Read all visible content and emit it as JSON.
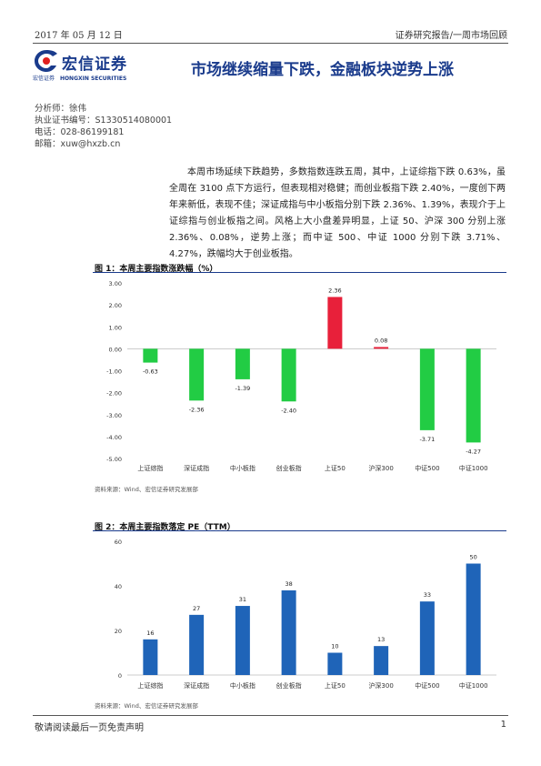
{
  "header": {
    "date": "2017 年 05 月 12 日",
    "report_type": "证券研究报告/一周市场回顾"
  },
  "logo": {
    "cn_name": "宏信证券",
    "sub_cn": "宏信证券",
    "en_name": "HONGXIN SECURITIES",
    "brand_color": "#1a3b8c",
    "accent_color": "#e02020"
  },
  "title": "市场继续缩量下跌，金融板块逆势上涨",
  "meta": {
    "analyst": "分析师：徐伟",
    "license": "执业证书编号：S1330514080001",
    "phone": "电话：028-86199181",
    "email": "邮箱：xuw@hxzb.cn"
  },
  "paragraph": "本周市场延续下跌趋势，多数指数连跌五周，其中，上证综指下跌 0.63%，虽全周在 3100 点下方运行，但表现相对稳健；而创业板指下跌 2.40%，一度创下两年来新低，表现不佳；深证成指与中小板指分别下跌 2.36%、1.39%，表现介于上证综指与创业板指之间。风格上大小盘差异明显，上证 50、沪深 300 分别上涨 2.36%、0.08%，逆势上涨；而中证 500、中证 1000 分别下跌 3.71%、4.27%，跌幅均大于创业板指。",
  "figure1": {
    "caption": "图 1：本周主要指数涨跌幅（%）",
    "source": "资料来源：Wind、宏信证券研究发展部"
  },
  "figure2": {
    "caption": "图 2：本周主要指数落定 PE（TTM）",
    "source": "资料来源：Wind、宏信证券研究发展部"
  },
  "chart_data": [
    {
      "type": "bar",
      "categories": [
        "上证综指",
        "深证成指",
        "中小板指",
        "创业板指",
        "上证50",
        "沪深300",
        "中证500",
        "中证1000"
      ],
      "values": [
        -0.63,
        -2.36,
        -1.39,
        -2.4,
        2.36,
        0.08,
        -3.71,
        -4.27
      ],
      "value_labels": [
        "-0.63",
        "-2.36",
        "-1.39",
        "-2.40",
        "2.36",
        "0.08",
        "-3.71",
        "-4.27"
      ],
      "ylim": [
        -5,
        3
      ],
      "ytick_labels": [
        "3.00",
        "2.00",
        "1.00",
        "0.00",
        "-1.00",
        "-2.00",
        "-3.00",
        "-4.00",
        "-5.00"
      ],
      "colors": {
        "negative": "#22cc44",
        "positive": "#e8203a"
      }
    },
    {
      "type": "bar",
      "categories": [
        "上证综指",
        "深证成指",
        "中小板指",
        "创业板指",
        "上证50",
        "沪深300",
        "中证500",
        "中证1000"
      ],
      "values": [
        16,
        27,
        31,
        38,
        10,
        13,
        33,
        50
      ],
      "value_labels": [
        "16",
        "27",
        "31",
        "38",
        "10",
        "13",
        "33",
        "50"
      ],
      "ylim": [
        0,
        60
      ],
      "ytick_labels": [
        "60",
        "40",
        "20",
        "0"
      ],
      "colors": {
        "bar": "#1f64b8"
      }
    }
  ],
  "footer": {
    "disclaimer": "敬请阅读最后一页免责声明",
    "page_number": "1"
  }
}
